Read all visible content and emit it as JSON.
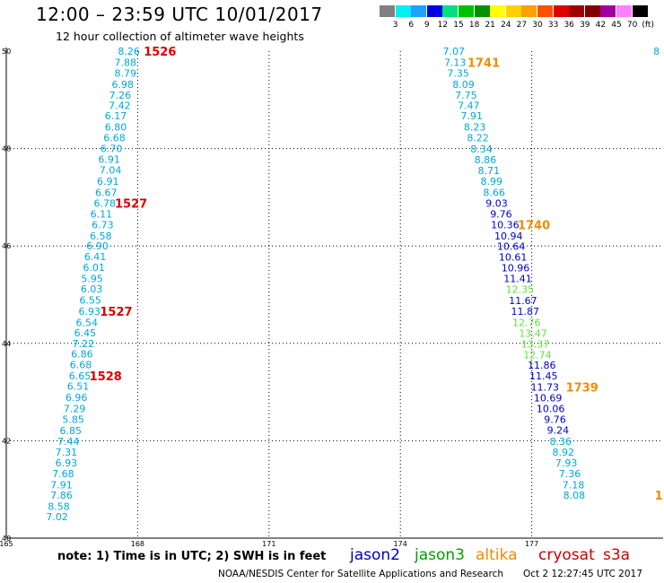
{
  "header": {
    "title": "12:00 – 23:59 UTC 10/01/2017",
    "subtitle": "12 hour collection of altimeter wave heights"
  },
  "colorbar": {
    "unit": "(ft)",
    "labels": [
      "3",
      "6",
      "9",
      "12",
      "15",
      "18",
      "21",
      "24",
      "27",
      "30",
      "33",
      "36",
      "39",
      "42",
      "45",
      "70"
    ],
    "colors": [
      "#808080",
      "#00f0f0",
      "#20a0ff",
      "#0000e0",
      "#00e080",
      "#00c000",
      "#009000",
      "#ffff00",
      "#ffd000",
      "#ffa000",
      "#ff5000",
      "#e00000",
      "#a00000",
      "#800000",
      "#a000a0",
      "#ff80ff",
      "#000000"
    ]
  },
  "footer": {
    "note": "note: 1) Time is in UTC; 2) SWH is in feet",
    "satellites": [
      {
        "name": "jason2",
        "color": "#0000cc"
      },
      {
        "name": "jason3",
        "color": "#00a000"
      },
      {
        "name": "altika",
        "color": "#f08c00"
      },
      {
        "name": "cryosat",
        "color": "#cc0000"
      },
      {
        "name": "s3a",
        "color": "#cc0000"
      }
    ],
    "credit": "NOAA/NESDIS Center for Satellite Applications and Research",
    "timestamp": "Oct  2 12:27:45 UTC 2017"
  },
  "chart_data": {
    "type": "scatter",
    "title": "12:00 – 23:59 UTC 10/01/2017",
    "subtitle": "12 hour collection of altimeter wave heights",
    "xlabel": "",
    "ylabel": "",
    "xlim": [
      165,
      180
    ],
    "ylim": [
      40,
      50
    ],
    "x_ticks": [
      165,
      168,
      171,
      174,
      177
    ],
    "y_ticks": [
      40,
      42,
      44,
      46,
      48,
      50
    ],
    "grid": true,
    "colors": {
      "cyan": "#00a8d8",
      "navy": "#0000c8",
      "lime": "#60e040",
      "orange": "#f08c00",
      "red": "#dd0000"
    },
    "tracks": [
      {
        "color": "cyan",
        "points": [
          [
            167.8,
            50.0,
            "8.26"
          ],
          [
            167.72,
            49.77,
            "7.88"
          ],
          [
            167.72,
            49.55,
            "8.79"
          ],
          [
            167.66,
            49.32,
            "6.98"
          ],
          [
            167.6,
            49.1,
            "7.26"
          ],
          [
            167.59,
            48.89,
            "7.42"
          ],
          [
            167.5,
            48.67,
            "6.17"
          ],
          [
            167.5,
            48.44,
            "6.80"
          ],
          [
            167.47,
            48.22,
            "6.68"
          ],
          [
            167.4,
            48.0,
            "6.70"
          ],
          [
            167.35,
            47.78,
            "6.91"
          ],
          [
            167.38,
            47.56,
            "7.04"
          ],
          [
            167.32,
            47.33,
            "6.91"
          ],
          [
            167.28,
            47.1,
            "6.67"
          ],
          [
            167.25,
            46.88,
            "6.78"
          ],
          [
            167.17,
            46.66,
            "6.11"
          ],
          [
            167.2,
            46.44,
            "6.73"
          ],
          [
            167.16,
            46.21,
            "6.58"
          ],
          [
            167.08,
            46.0,
            "6.90"
          ],
          [
            167.03,
            45.78,
            "6.41"
          ],
          [
            167.0,
            45.56,
            "6.01"
          ],
          [
            166.96,
            45.33,
            "5.95"
          ],
          [
            166.95,
            45.12,
            "6.03"
          ],
          [
            166.92,
            44.89,
            "6.55"
          ],
          [
            166.9,
            44.66,
            "6.93"
          ],
          [
            166.84,
            44.43,
            "6.54"
          ],
          [
            166.8,
            44.22,
            "6.45"
          ],
          [
            166.76,
            44.0,
            "7.22"
          ],
          [
            166.73,
            43.78,
            "6.86"
          ],
          [
            166.7,
            43.56,
            "6.68"
          ],
          [
            166.68,
            43.33,
            "6.65"
          ],
          [
            166.64,
            43.12,
            "6.51"
          ],
          [
            166.6,
            42.89,
            "6.96"
          ],
          [
            166.56,
            42.66,
            "7.29"
          ],
          [
            166.53,
            42.44,
            "5.85"
          ],
          [
            166.47,
            42.21,
            "6.85"
          ],
          [
            166.42,
            41.99,
            "7.44"
          ],
          [
            166.37,
            41.77,
            "7.31"
          ],
          [
            166.37,
            41.55,
            "6.93"
          ],
          [
            166.3,
            41.33,
            "7.68"
          ],
          [
            166.26,
            41.1,
            "7.91"
          ],
          [
            166.26,
            40.88,
            "7.86"
          ],
          [
            166.2,
            40.65,
            "8.58"
          ],
          [
            166.16,
            40.44,
            "7.02"
          ]
        ]
      },
      {
        "color": "cyan",
        "points": [
          [
            175.22,
            50.0,
            "7.07"
          ],
          [
            175.25,
            49.77,
            "7.13"
          ],
          [
            175.32,
            49.55,
            "7.35"
          ],
          [
            175.44,
            49.32,
            "8.09"
          ],
          [
            175.5,
            49.1,
            "7.75"
          ],
          [
            175.56,
            48.89,
            "7.47"
          ],
          [
            175.63,
            48.67,
            "7.91"
          ],
          [
            175.7,
            48.44,
            "8.23"
          ],
          [
            175.77,
            48.22,
            "8.22"
          ],
          [
            175.85,
            47.99,
            "8.34"
          ],
          [
            175.94,
            47.77,
            "8.86"
          ],
          [
            176.02,
            47.55,
            "8.71"
          ],
          [
            176.08,
            47.33,
            "8.99"
          ],
          [
            176.14,
            47.1,
            "8.66"
          ]
        ]
      },
      {
        "color": "navy",
        "points": [
          [
            176.2,
            46.88,
            "9.03"
          ],
          [
            176.3,
            46.66,
            "9.76"
          ],
          [
            176.39,
            46.44,
            "10.36"
          ],
          [
            176.47,
            46.21,
            "10.94"
          ],
          [
            176.53,
            45.99,
            "10.64"
          ],
          [
            176.57,
            45.77,
            "10.61"
          ],
          [
            176.63,
            45.55,
            "10.96"
          ],
          [
            176.68,
            45.33,
            "11.41"
          ]
        ]
      },
      {
        "color": "lime",
        "points": [
          [
            176.73,
            45.11,
            "12.35"
          ]
        ]
      },
      {
        "color": "navy",
        "points": [
          [
            176.8,
            44.88,
            "11.67"
          ],
          [
            176.85,
            44.66,
            "11.87"
          ]
        ]
      },
      {
        "color": "lime",
        "points": [
          [
            176.88,
            44.43,
            "12.76"
          ],
          [
            177.03,
            44.21,
            "13.47"
          ],
          [
            177.08,
            43.99,
            "13.37"
          ],
          [
            177.13,
            43.77,
            "12.74"
          ]
        ]
      },
      {
        "color": "navy",
        "points": [
          [
            177.23,
            43.55,
            "11.86"
          ],
          [
            177.27,
            43.33,
            "11.45"
          ],
          [
            177.3,
            43.1,
            "11.73"
          ],
          [
            177.37,
            42.88,
            "10.69"
          ],
          [
            177.43,
            42.66,
            "10.06"
          ],
          [
            177.53,
            42.44,
            "9.76"
          ],
          [
            177.6,
            42.22,
            "9.24"
          ]
        ]
      },
      {
        "color": "cyan",
        "points": [
          [
            177.66,
            41.99,
            "8.36"
          ],
          [
            177.72,
            41.77,
            "8.92"
          ],
          [
            177.79,
            41.55,
            "7.93"
          ],
          [
            177.87,
            41.33,
            "7.36"
          ],
          [
            177.95,
            41.1,
            "7.18"
          ],
          [
            177.97,
            40.88,
            "8.08"
          ]
        ]
      },
      {
        "color": "cyan",
        "points": [
          [
            179.85,
            50.0,
            "8"
          ]
        ]
      }
    ],
    "annotations": [
      {
        "text": "1526",
        "x": 168.51,
        "y": 50.0,
        "color": "red"
      },
      {
        "text": "1527",
        "x": 167.85,
        "y": 46.88,
        "color": "red"
      },
      {
        "text": "1527",
        "x": 167.51,
        "y": 44.66,
        "color": "red"
      },
      {
        "text": "1528",
        "x": 167.27,
        "y": 43.33,
        "color": "red"
      },
      {
        "text": "1741",
        "x": 175.9,
        "y": 49.77,
        "color": "orange"
      },
      {
        "text": "1740",
        "x": 177.05,
        "y": 46.44,
        "color": "orange"
      },
      {
        "text": "1739",
        "x": 178.15,
        "y": 43.1,
        "color": "orange"
      },
      {
        "text": "1",
        "x": 179.9,
        "y": 40.88,
        "color": "orange"
      }
    ]
  }
}
